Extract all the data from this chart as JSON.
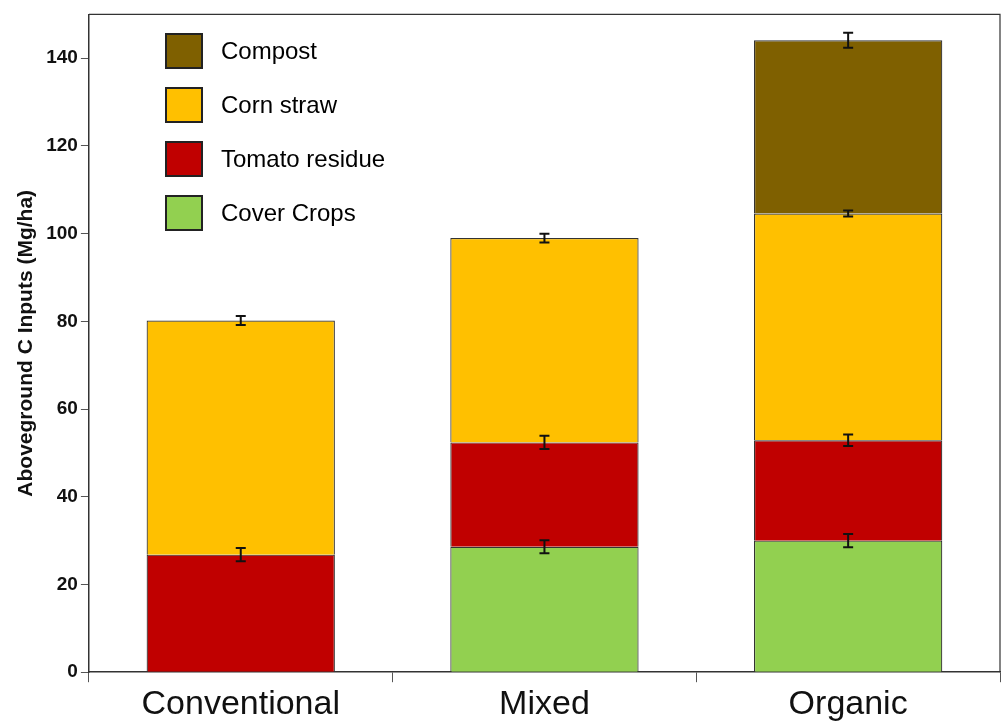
{
  "chart_data": {
    "type": "bar",
    "stacked": true,
    "ylabel": "Aboveground C Inputs (Mg/ha)",
    "categories": [
      "Conventional",
      "Mixed",
      "Organic"
    ],
    "series": [
      {
        "name": "Cover Crops",
        "color": "#92d050",
        "values": [
          null,
          28.6,
          30.0
        ],
        "errors": [
          null,
          1.5,
          1.5
        ]
      },
      {
        "name": "Tomato residue",
        "color": "#c00000",
        "values": [
          26.8,
          23.8,
          22.9
        ],
        "errors": [
          1.5,
          1.5,
          1.3
        ]
      },
      {
        "name": "Corn straw",
        "color": "#ffc000",
        "values": [
          53.4,
          46.6,
          51.7
        ],
        "errors": [
          1.0,
          1.0,
          0.7
        ]
      },
      {
        "name": "Compost",
        "color": "#7f6000",
        "values": [
          null,
          null,
          39.5
        ],
        "errors": [
          null,
          null,
          1.7
        ]
      }
    ],
    "ylim": [
      0,
      150
    ],
    "yticks": [
      0,
      20,
      40,
      60,
      80,
      100,
      120,
      140
    ],
    "grid": false,
    "legend": "top left"
  }
}
